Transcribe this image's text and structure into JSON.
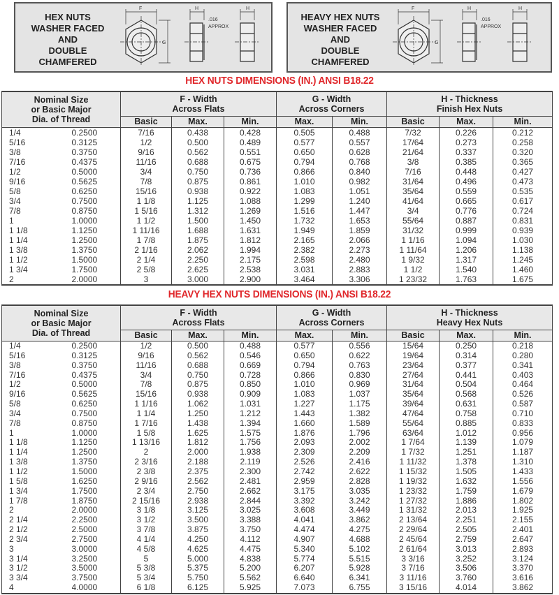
{
  "diagrams": [
    {
      "label_lines": [
        "HEX NUTS",
        "WASHER FACED",
        "AND",
        "DOUBLE",
        "CHAMFERED"
      ],
      "dim_f": "F",
      "dim_g": "G",
      "dim_h": "H",
      "approx_value": ".016",
      "approx_word": "APPROX"
    },
    {
      "label_lines": [
        "HEAVY HEX NUTS",
        "WASHER FACED",
        "AND",
        "DOUBLE",
        "CHAMFERED"
      ],
      "dim_f": "F",
      "dim_g": "G",
      "dim_h": "H",
      "approx_value": ".016",
      "approx_word": "APPROX"
    }
  ],
  "colors": {
    "title": "#e0262a",
    "header_bg": "#e8e8e8",
    "diagram_bg": "#e4e4e4"
  },
  "tables": [
    {
      "title": "HEX NUTS DIMENSIONS (IN.) ANSI B18.22",
      "headers": {
        "nominal": [
          "Nominal Size",
          "or Basic Major",
          "Dia. of Thread"
        ],
        "f": [
          "F - Width",
          "Across Flats"
        ],
        "g": [
          "G - Width",
          "Across Corners"
        ],
        "h": [
          "H - Thickness",
          "Finish Hex Nuts"
        ],
        "sub": [
          "Basic",
          "Max.",
          "Min.",
          "Max.",
          "Min.",
          "Basic",
          "Max.",
          "Min."
        ]
      },
      "rows": [
        [
          "1/4",
          "0.2500",
          "7/16",
          "0.438",
          "0.428",
          "0.505",
          "0.488",
          "7/32",
          "0.226",
          "0.212"
        ],
        [
          "5/16",
          "0.3125",
          "1/2",
          "0.500",
          "0.489",
          "0.577",
          "0.557",
          "17/64",
          "0.273",
          "0.258"
        ],
        [
          "3/8",
          "0.3750",
          "9/16",
          "0.562",
          "0.551",
          "0.650",
          "0.628",
          "21/64",
          "0.337",
          "0.320"
        ],
        [
          "7/16",
          "0.4375",
          "11/16",
          "0.688",
          "0.675",
          "0.794",
          "0.768",
          "3/8",
          "0.385",
          "0.365"
        ],
        [
          "1/2",
          "0.5000",
          "3/4",
          "0.750",
          "0.736",
          "0.866",
          "0.840",
          "7/16",
          "0.448",
          "0.427"
        ],
        [
          "9/16",
          "0.5625",
          "7/8",
          "0.875",
          "0.861",
          "1.010",
          "0.982",
          "31/64",
          "0.496",
          "0.473"
        ],
        [
          "5/8",
          "0.6250",
          "15/16",
          "0.938",
          "0.922",
          "1.083",
          "1.051",
          "35/64",
          "0.559",
          "0.535"
        ],
        [
          "3/4",
          "0.7500",
          "1 1/8",
          "1.125",
          "1.088",
          "1.299",
          "1.240",
          "41/64",
          "0.665",
          "0.617"
        ],
        [
          "7/8",
          "0.8750",
          "1 5/16",
          "1.312",
          "1.269",
          "1.516",
          "1.447",
          "3/4",
          "0.776",
          "0.724"
        ],
        [
          "1",
          "1.0000",
          "1 1/2",
          "1.500",
          "1.450",
          "1.732",
          "1.653",
          "55/64",
          "0.887",
          "0.831"
        ],
        [
          "1 1/8",
          "1.1250",
          "1 11/16",
          "1.688",
          "1.631",
          "1.949",
          "1.859",
          "31/32",
          "0.999",
          "0.939"
        ],
        [
          "1 1/4",
          "1.2500",
          "1 7/8",
          "1.875",
          "1.812",
          "2.165",
          "2.066",
          "1 1/16",
          "1.094",
          "1.030"
        ],
        [
          "1 3/8",
          "1.3750",
          "2 1/16",
          "2.062",
          "1.994",
          "2.382",
          "2.273",
          "1 11/64",
          "1.206",
          "1.138"
        ],
        [
          "1 1/2",
          "1.5000",
          "2 1/4",
          "2.250",
          "2.175",
          "2.598",
          "2.480",
          "1 9/32",
          "1.317",
          "1.245"
        ],
        [
          "1 3/4",
          "1.7500",
          "2 5/8",
          "2.625",
          "2.538",
          "3.031",
          "2.883",
          "1 1/2",
          "1.540",
          "1.460"
        ],
        [
          "2",
          "2.0000",
          "3",
          "3.000",
          "2.900",
          "3.464",
          "3.306",
          "1 23/32",
          "1.763",
          "1.675"
        ]
      ]
    },
    {
      "title": "HEAVY HEX NUTS DIMENSIONS (IN.) ANSI B18.22",
      "headers": {
        "nominal": [
          "Nominal Size",
          "or Basic Major",
          "Dia. of Thread"
        ],
        "f": [
          "F - Width",
          "Across Flats"
        ],
        "g": [
          "G - Width",
          "Across Corners"
        ],
        "h": [
          "H - Thickness",
          "Heavy Hex Nuts"
        ],
        "sub": [
          "Basic",
          "Max.",
          "Min.",
          "Max.",
          "Min.",
          "Basic",
          "Max.",
          "Min."
        ]
      },
      "rows": [
        [
          "1/4",
          "0.2500",
          "1/2",
          "0.500",
          "0.488",
          "0.577",
          "0.556",
          "15/64",
          "0.250",
          "0.218"
        ],
        [
          "5/16",
          "0.3125",
          "9/16",
          "0.562",
          "0.546",
          "0.650",
          "0.622",
          "19/64",
          "0.314",
          "0.280"
        ],
        [
          "3/8",
          "0.3750",
          "11/16",
          "0.688",
          "0.669",
          "0.794",
          "0.763",
          "23/64",
          "0.377",
          "0.341"
        ],
        [
          "7/16",
          "0.4375",
          "3/4",
          "0.750",
          "0.728",
          "0.866",
          "0.830",
          "27/64",
          "0.441",
          "0.403"
        ],
        [
          "1/2",
          "0.5000",
          "7/8",
          "0.875",
          "0.850",
          "1.010",
          "0.969",
          "31/64",
          "0.504",
          "0.464"
        ],
        [
          "9/16",
          "0.5625",
          "15/16",
          "0.938",
          "0.909",
          "1.083",
          "1.037",
          "35/64",
          "0.568",
          "0.526"
        ],
        [
          "5/8",
          "0.6250",
          "1 1/16",
          "1.062",
          "1.031",
          "1.227",
          "1.175",
          "39/64",
          "0.631",
          "0.587"
        ],
        [
          "3/4",
          "0.7500",
          "1 1/4",
          "1.250",
          "1.212",
          "1.443",
          "1.382",
          "47/64",
          "0.758",
          "0.710"
        ],
        [
          "7/8",
          "0.8750",
          "1 7/16",
          "1.438",
          "1.394",
          "1.660",
          "1.589",
          "55/64",
          "0.885",
          "0.833"
        ],
        [
          "1",
          "1.0000",
          "1 5/8",
          "1.625",
          "1.575",
          "1.876",
          "1.796",
          "63/64",
          "1.012",
          "0.956"
        ],
        [
          "1 1/8",
          "1.1250",
          "1 13/16",
          "1.812",
          "1.756",
          "2.093",
          "2.002",
          "1 7/64",
          "1.139",
          "1.079"
        ],
        [
          "1 1/4",
          "1.2500",
          "2",
          "2.000",
          "1.938",
          "2.309",
          "2.209",
          "1 7/32",
          "1.251",
          "1.187"
        ],
        [
          "1 3/8",
          "1.3750",
          "2 3/16",
          "2.188",
          "2.119",
          "2.526",
          "2.416",
          "1 11/32",
          "1.378",
          "1.310"
        ],
        [
          "1 1/2",
          "1.5000",
          "2 3/8",
          "2.375",
          "2.300",
          "2.742",
          "2.622",
          "1 15/32",
          "1.505",
          "1.433"
        ],
        [
          "1 5/8",
          "1.6250",
          "2 9/16",
          "2.562",
          "2.481",
          "2.959",
          "2.828",
          "1 19/32",
          "1.632",
          "1.556"
        ],
        [
          "1 3/4",
          "1.7500",
          "2 3/4",
          "2.750",
          "2.662",
          "3.175",
          "3.035",
          "1 23/32",
          "1.759",
          "1.679"
        ],
        [
          "1 7/8",
          "1.8750",
          "2 15/16",
          "2.938",
          "2.844",
          "3.392",
          "3.242",
          "1 27/32",
          "1.886",
          "1.802"
        ],
        [
          "2",
          "2.0000",
          "3 1/8",
          "3.125",
          "3.025",
          "3.608",
          "3.449",
          "1 31/32",
          "2.013",
          "1.925"
        ],
        [
          "2 1/4",
          "2.2500",
          "3 1/2",
          "3.500",
          "3.388",
          "4.041",
          "3.862",
          "2 13/64",
          "2.251",
          "2.155"
        ],
        [
          "2 1/2",
          "2.5000",
          "3 7/8",
          "3.875",
          "3.750",
          "4.474",
          "4.275",
          "2 29/64",
          "2.505",
          "2.401"
        ],
        [
          "2 3/4",
          "2.7500",
          "4 1/4",
          "4.250",
          "4.112",
          "4.907",
          "4.688",
          "2 45/64",
          "2.759",
          "2.647"
        ],
        [
          "3",
          "3.0000",
          "4 5/8",
          "4.625",
          "4.475",
          "5.340",
          "5.102",
          "2 61/64",
          "3.013",
          "2.893"
        ],
        [
          "3 1/4",
          "3.2500",
          "5",
          "5.000",
          "4.838",
          "5.774",
          "5.515",
          "3 3/16",
          "3.252",
          "3.124"
        ],
        [
          "3 1/2",
          "3.5000",
          "5 3/8",
          "5.375",
          "5.200",
          "6.207",
          "5.928",
          "3 7/16",
          "3.506",
          "3.370"
        ],
        [
          "3 3/4",
          "3.7500",
          "5 3/4",
          "5.750",
          "5.562",
          "6.640",
          "6.341",
          "3 11/16",
          "3.760",
          "3.616"
        ],
        [
          "4",
          "4.0000",
          "6 1/8",
          "6.125",
          "5.925",
          "7.073",
          "6.755",
          "3 15/16",
          "4.014",
          "3.862"
        ]
      ]
    }
  ]
}
